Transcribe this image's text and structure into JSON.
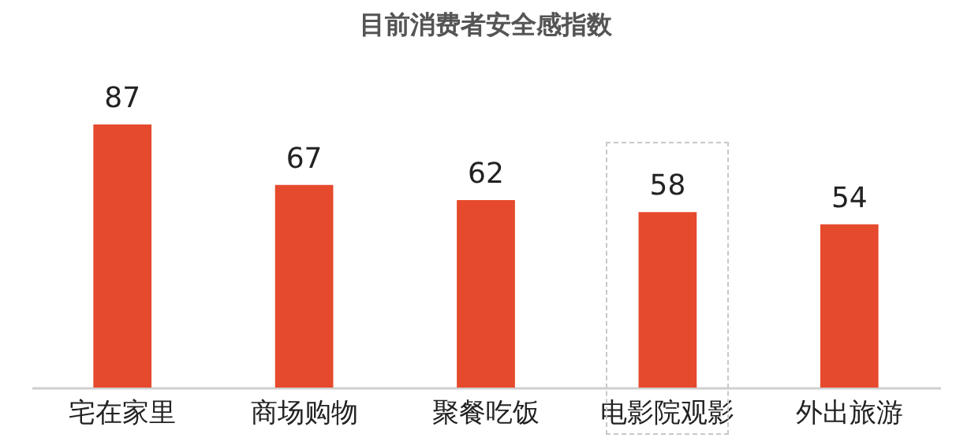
{
  "chart_data": {
    "type": "bar",
    "title": "目前消费者安全感指数",
    "categories": [
      "宅在家里",
      "商场购物",
      "聚餐吃饭",
      "电影院观影",
      "外出旅游"
    ],
    "values": [
      87,
      67,
      62,
      58,
      54
    ],
    "color": "#e64a2c",
    "data_labels": true
  }
}
